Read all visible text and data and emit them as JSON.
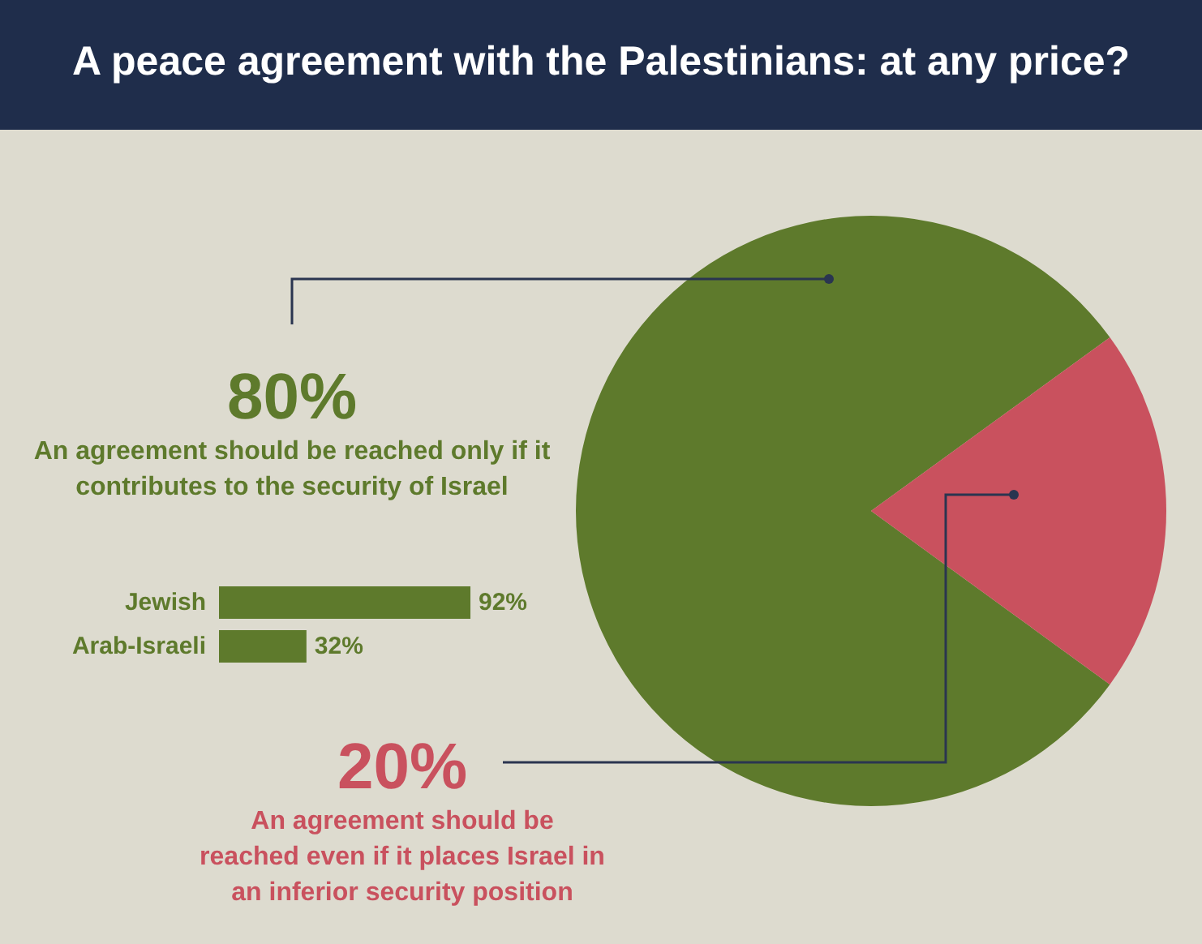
{
  "chart_data": [
    {
      "type": "pie",
      "title": "A peace agreement with the Palestinians: at any price?",
      "categories": [
        "An agreement should be reached only if it contributes to the security of Israel",
        "An agreement should be reached even if it places Israel in an inferior security position"
      ],
      "values": [
        80,
        20
      ],
      "value_labels": [
        "80%",
        "20%"
      ],
      "colors": [
        "#5e7a2c",
        "#c9515e"
      ],
      "legend": false
    },
    {
      "type": "bar",
      "orientation": "horizontal",
      "categories": [
        "Jewish",
        "Arab-Israeli"
      ],
      "values": [
        92,
        32
      ],
      "value_labels": [
        "92%",
        "32%"
      ],
      "color": "#5e7a2c",
      "legend": false
    }
  ]
}
